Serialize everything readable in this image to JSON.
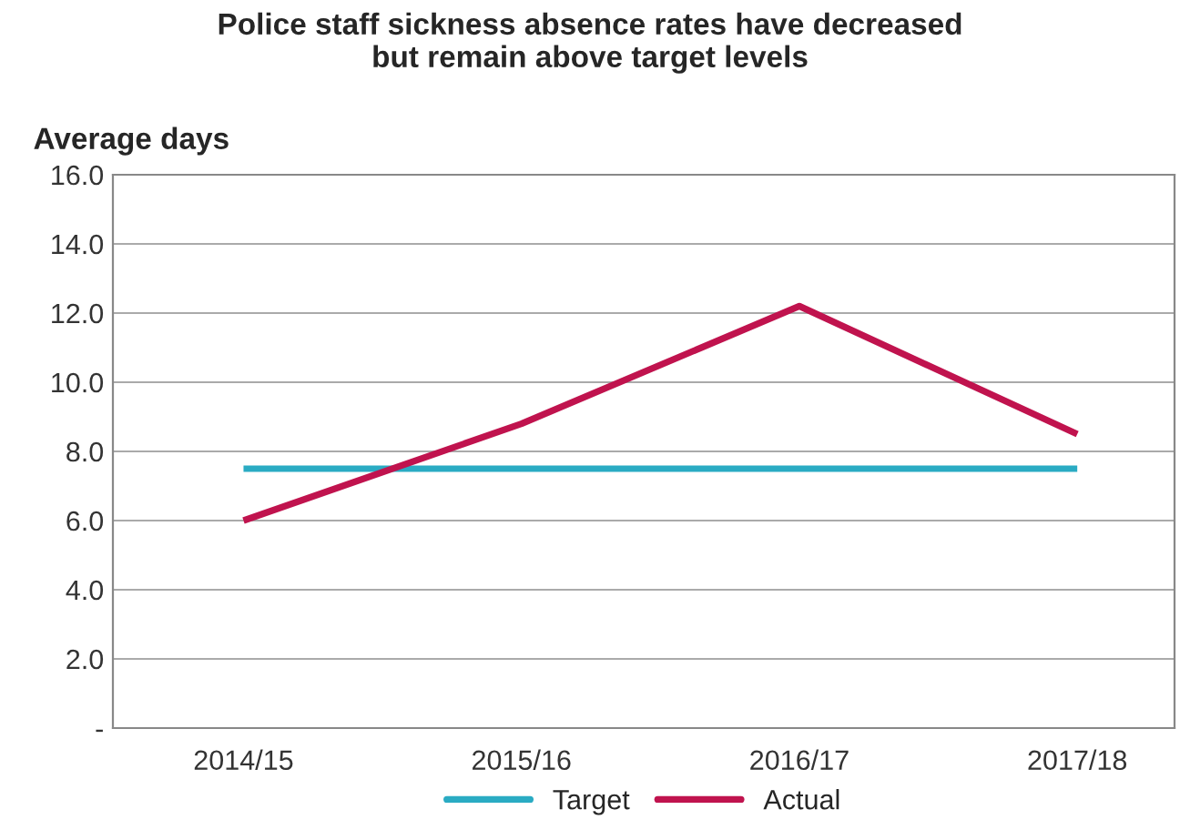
{
  "chart_data": {
    "type": "line",
    "title": "Police staff sickness absence rates have decreased\nbut remain above target levels",
    "ylabel": "Average days",
    "categories": [
      "2014/15",
      "2015/16",
      "2016/17",
      "2017/18"
    ],
    "series": [
      {
        "name": "Target",
        "color": "#2aabc3",
        "values": [
          7.5,
          7.5,
          7.5,
          7.5
        ]
      },
      {
        "name": "Actual",
        "color": "#c0134e",
        "values": [
          6.0,
          8.8,
          12.2,
          8.5
        ]
      }
    ],
    "ylim": [
      0,
      16
    ],
    "yticks": [
      {
        "value": 0,
        "label": "-"
      },
      {
        "value": 2,
        "label": "2.0"
      },
      {
        "value": 4,
        "label": "4.0"
      },
      {
        "value": 6,
        "label": "6.0"
      },
      {
        "value": 8,
        "label": "8.0"
      },
      {
        "value": 10,
        "label": "10.0"
      },
      {
        "value": 12,
        "label": "12.0"
      },
      {
        "value": 14,
        "label": "14.0"
      },
      {
        "value": 16,
        "label": "16.0"
      }
    ],
    "grid": "y",
    "legend": "bottom",
    "marker": "none",
    "line_style": "solid"
  }
}
